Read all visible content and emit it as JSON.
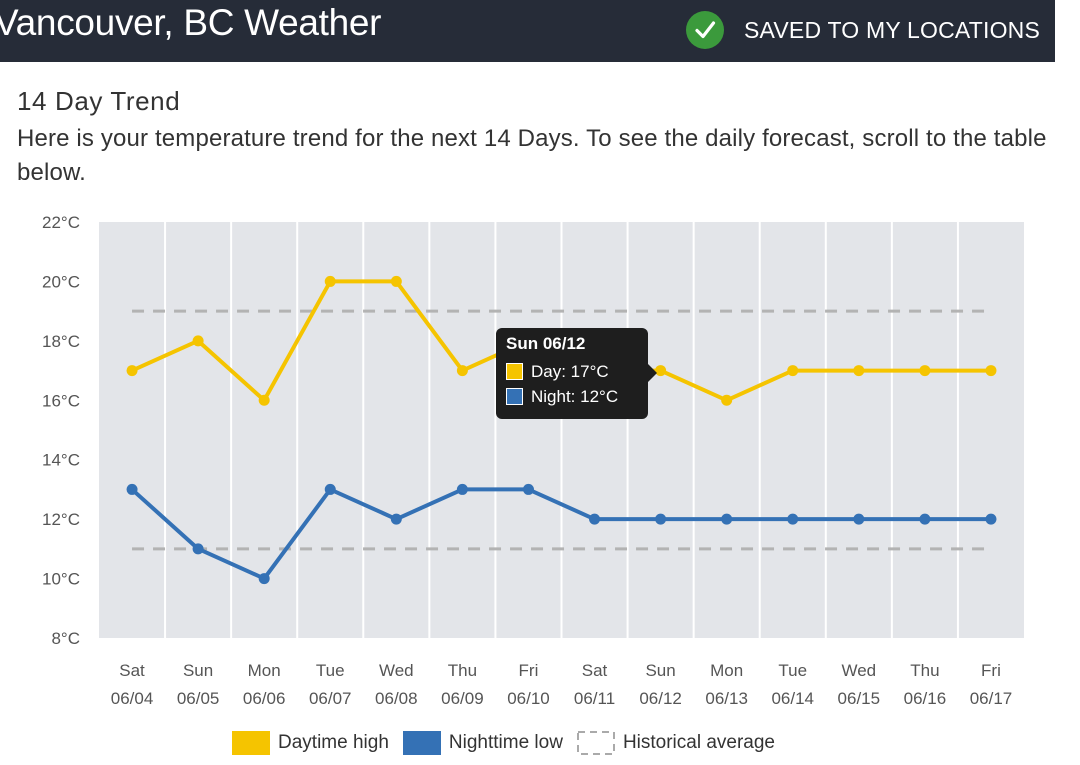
{
  "header": {
    "title": "Vancouver, BC Weather",
    "saved_label": "SAVED TO MY LOCATIONS",
    "icon": "checkmark-icon"
  },
  "section": {
    "heading": "14 Day Trend",
    "description": "Here is your temperature trend for the next 14 Days. To see the daily forecast, scroll to the table below."
  },
  "colors": {
    "header_bg": "#262c38",
    "check_green": "#3b9a3c",
    "plot_bg": "#e3e5e9",
    "day": "#f5c400",
    "night": "#3471b5",
    "historical": "#b3b3b3"
  },
  "chart_data": {
    "type": "line",
    "title": "",
    "xlabel": "",
    "ylabel": "",
    "ylim": [
      8,
      22
    ],
    "y_ticks": [
      "22°C",
      "20°C",
      "18°C",
      "16°C",
      "14°C",
      "12°C",
      "10°C",
      "8°C"
    ],
    "categories": [
      {
        "day": "Sat",
        "date": "06/04"
      },
      {
        "day": "Sun",
        "date": "06/05"
      },
      {
        "day": "Mon",
        "date": "06/06"
      },
      {
        "day": "Tue",
        "date": "06/07"
      },
      {
        "day": "Wed",
        "date": "06/08"
      },
      {
        "day": "Thu",
        "date": "06/09"
      },
      {
        "day": "Fri",
        "date": "06/10"
      },
      {
        "day": "Sat",
        "date": "06/11"
      },
      {
        "day": "Sun",
        "date": "06/12"
      },
      {
        "day": "Mon",
        "date": "06/13"
      },
      {
        "day": "Tue",
        "date": "06/14"
      },
      {
        "day": "Wed",
        "date": "06/15"
      },
      {
        "day": "Thu",
        "date": "06/16"
      },
      {
        "day": "Fri",
        "date": "06/17"
      }
    ],
    "series": [
      {
        "name": "Daytime high",
        "values": [
          17,
          18,
          16,
          20,
          20,
          17,
          18,
          17,
          17,
          16,
          17,
          17,
          17,
          17
        ]
      },
      {
        "name": "Nighttime low",
        "values": [
          13,
          11,
          10,
          13,
          12,
          13,
          13,
          12,
          12,
          12,
          12,
          12,
          12,
          12
        ]
      }
    ],
    "historical_average": {
      "name": "Historical average",
      "high": 19,
      "low": 11
    },
    "legend": [
      "Daytime high",
      "Nighttime low",
      "Historical average"
    ],
    "legend_position": "bottom",
    "grid": true,
    "tooltip": {
      "title": "Sun 06/12",
      "day_label": "Day: 17°C",
      "night_label": "Night: 12°C"
    }
  }
}
